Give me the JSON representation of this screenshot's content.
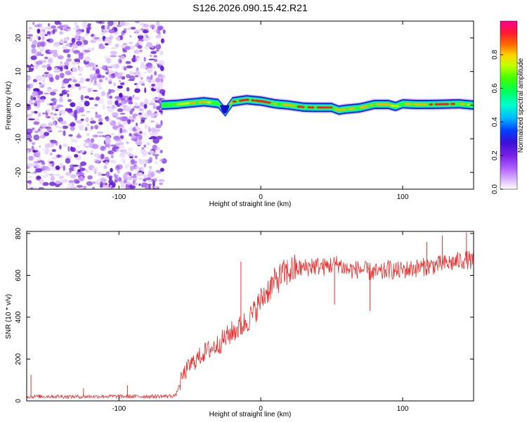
{
  "page_title": "S126.2026.090.15.42.R21",
  "colorbar_label": "Normalized spectral amplitude",
  "chart_data": [
    {
      "type": "heatmap",
      "title": "S126.2026.090.15.42.R21",
      "xlabel": "Height of straight line (km)",
      "ylabel": "Frequency (Hz)",
      "xlim": [
        -165,
        150
      ],
      "ylim": [
        -25,
        25
      ],
      "xticks": [
        {
          "v": -100,
          "label": "-100"
        },
        {
          "v": 0,
          "label": "0"
        },
        {
          "v": 100,
          "label": "100"
        }
      ],
      "yticks": [
        {
          "v": 20,
          "label": "20"
        },
        {
          "v": 10,
          "label": "10"
        },
        {
          "v": 0,
          "label": "0"
        },
        {
          "v": -10,
          "label": "-10"
        },
        {
          "v": -20,
          "label": "-20"
        }
      ],
      "noise_region_x": [
        -165,
        -68
      ],
      "signal_ridge": {
        "x": [
          -70,
          -60,
          -50,
          -40,
          -30,
          -25,
          -20,
          -10,
          0,
          10,
          20,
          30,
          40,
          50,
          55,
          60,
          70,
          80,
          90,
          95,
          100,
          110,
          120,
          130,
          140,
          150
        ],
        "freq": [
          0.0,
          0.2,
          0.6,
          1.0,
          0.5,
          -2.0,
          1.0,
          1.6,
          1.2,
          0.4,
          0.0,
          -0.6,
          -0.7,
          -0.7,
          -1.5,
          -1.2,
          -0.8,
          0.2,
          0.2,
          -0.4,
          0.4,
          0.2,
          0.2,
          0.3,
          0.4,
          0.0
        ],
        "amplitude": [
          0.5,
          0.7,
          0.75,
          0.8,
          0.6,
          0.3,
          0.85,
          0.95,
          0.9,
          0.85,
          0.8,
          0.95,
          0.95,
          0.9,
          0.8,
          0.85,
          0.75,
          0.8,
          0.8,
          0.7,
          0.8,
          0.85,
          0.85,
          0.9,
          0.9,
          0.6
        ]
      },
      "colorbar": {
        "range": [
          0,
          1
        ],
        "ticks": [
          {
            "v": 0.0,
            "label": "0.0"
          },
          {
            "v": 0.2,
            "label": "0.2"
          },
          {
            "v": 0.4,
            "label": "0.4"
          },
          {
            "v": 0.6,
            "label": "0.6"
          },
          {
            "v": 0.8,
            "label": "0.8"
          }
        ]
      }
    },
    {
      "type": "line",
      "xlabel": "Height of straight line (km)",
      "ylabel": "SNR (10 * v/v)",
      "xlim": [
        -165,
        150
      ],
      "ylim": [
        0,
        810
      ],
      "xticks": [
        {
          "v": -100,
          "label": "-100"
        },
        {
          "v": 0,
          "label": "0"
        },
        {
          "v": 100,
          "label": "100"
        }
      ],
      "yticks": [
        {
          "v": 0,
          "label": "0"
        },
        {
          "v": 200,
          "label": "200"
        },
        {
          "v": 400,
          "label": "400"
        },
        {
          "v": 600,
          "label": "600"
        },
        {
          "v": 800,
          "label": "800"
        }
      ],
      "series": [
        {
          "name": "SNR",
          "color": "#e8302e",
          "x": [
            -165,
            -150,
            -130,
            -110,
            -90,
            -70,
            -60,
            -55,
            -50,
            -45,
            -40,
            -35,
            -30,
            -25,
            -20,
            -15,
            -10,
            -5,
            0,
            5,
            10,
            15,
            20,
            25,
            30,
            35,
            40,
            45,
            50,
            55,
            60,
            65,
            70,
            75,
            80,
            85,
            90,
            95,
            100,
            105,
            110,
            115,
            120,
            125,
            130,
            135,
            140,
            145,
            150
          ],
          "y": [
            20,
            22,
            20,
            22,
            21,
            22,
            25,
            120,
            170,
            200,
            230,
            250,
            270,
            300,
            330,
            350,
            380,
            420,
            480,
            530,
            570,
            600,
            620,
            630,
            635,
            640,
            645,
            640,
            650,
            655,
            630,
            625,
            630,
            620,
            615,
            610,
            630,
            620,
            625,
            630,
            635,
            640,
            645,
            650,
            655,
            660,
            670,
            675,
            665
          ],
          "spikes": [
            {
              "x": -162,
              "y": 125
            },
            {
              "x": -125,
              "y": 60
            },
            {
              "x": -94,
              "y": 75
            },
            {
              "x": -14,
              "y": 665
            },
            {
              "x": 36,
              "y": 680
            },
            {
              "x": 52,
              "y": 460
            },
            {
              "x": 77,
              "y": 430
            },
            {
              "x": 117,
              "y": 760
            },
            {
              "x": 128,
              "y": 790
            },
            {
              "x": 145,
              "y": 805
            }
          ]
        }
      ]
    }
  ]
}
